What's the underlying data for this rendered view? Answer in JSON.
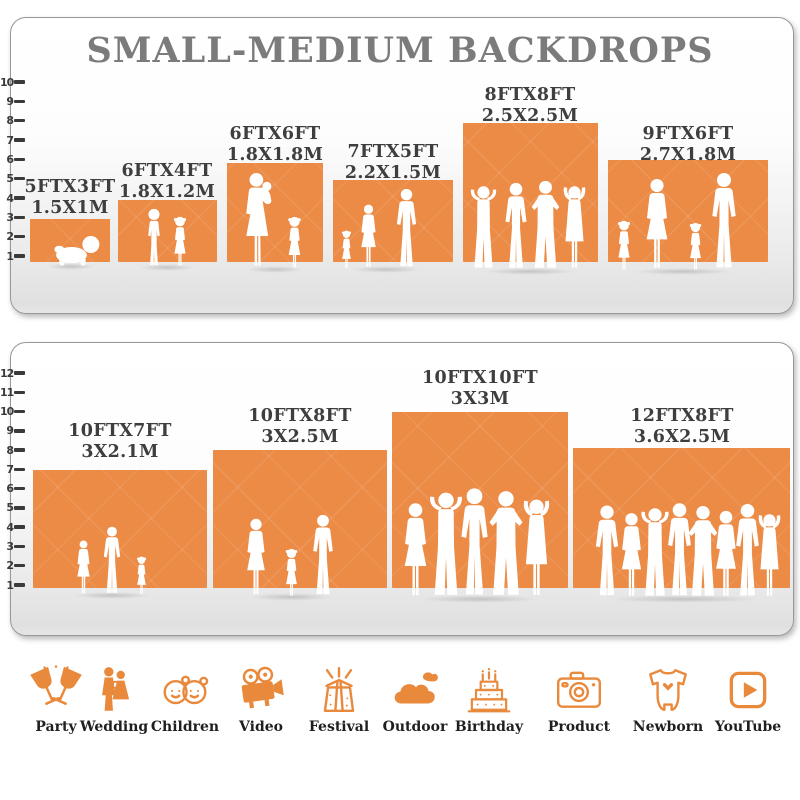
{
  "title": "SMALL-MEDIUM BACKDROPS",
  "colors": {
    "accent": "#EB8B46",
    "title_gray": "#7b7b7b",
    "label_gray": "#3e3e3e"
  },
  "panels": [
    {
      "ruler_numbers": [
        "1",
        "2",
        "3",
        "4",
        "5",
        "6",
        "7",
        "8",
        "9",
        "10"
      ],
      "backdrops": [
        {
          "size_ft": "5FTX3FT",
          "size_m": "1.5X1M"
        },
        {
          "size_ft": "6FTX4FT",
          "size_m": "1.8X1.2M"
        },
        {
          "size_ft": "6FTX6FT",
          "size_m": "1.8X1.8M"
        },
        {
          "size_ft": "7FTX5FT",
          "size_m": "2.2X1.5M"
        },
        {
          "size_ft": "8FTX8FT",
          "size_m": "2.5X2.5M"
        },
        {
          "size_ft": "9FTX6FT",
          "size_m": "2.7X1.8M"
        }
      ]
    },
    {
      "ruler_numbers": [
        "1",
        "2",
        "3",
        "4",
        "5",
        "6",
        "7",
        "8",
        "9",
        "10",
        "11",
        "12"
      ],
      "backdrops": [
        {
          "size_ft": "10FTX7FT",
          "size_m": "3X2.1M"
        },
        {
          "size_ft": "10FTX8FT",
          "size_m": "3X2.5M"
        },
        {
          "size_ft": "10FTX10FT",
          "size_m": "3X3M"
        },
        {
          "size_ft": "12FTX8FT",
          "size_m": "3.6X2.5M"
        }
      ]
    }
  ],
  "categories": [
    {
      "label": "Party"
    },
    {
      "label": "Wedding"
    },
    {
      "label": "Children"
    },
    {
      "label": "Video"
    },
    {
      "label": "Festival"
    },
    {
      "label": "Outdoor"
    },
    {
      "label": "Birthday"
    },
    {
      "label": "Product"
    },
    {
      "label": "Newborn"
    },
    {
      "label": "YouTube"
    }
  ]
}
